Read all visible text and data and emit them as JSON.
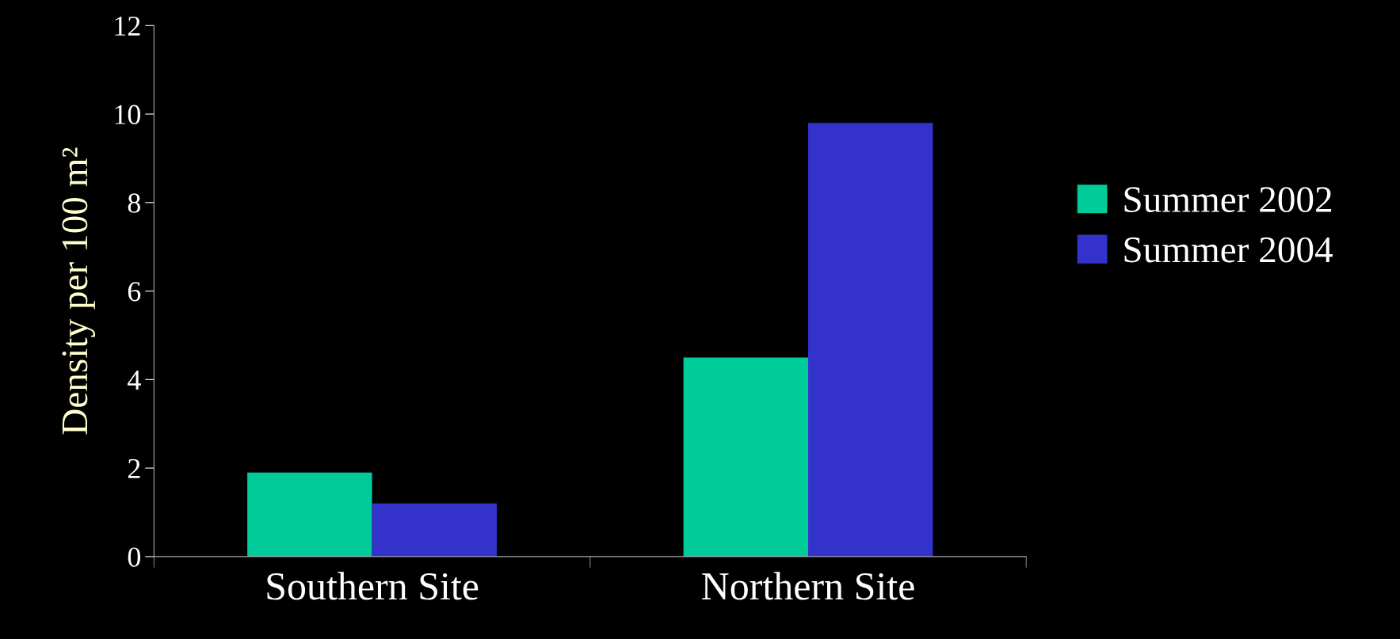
{
  "chart_data": {
    "type": "bar",
    "ylabel": "Density per 100 m²",
    "categories": [
      "Southern Site",
      "Northern Site"
    ],
    "series": [
      {
        "name": "Summer 2002",
        "color": "#00cc99",
        "values": [
          1.9,
          4.5
        ]
      },
      {
        "name": "Summer 2004",
        "color": "#3333cc",
        "values": [
          1.2,
          9.8
        ]
      }
    ],
    "ylim": [
      0,
      12
    ],
    "yticks": [
      0,
      2,
      4,
      6,
      8,
      10,
      12
    ],
    "grid": false,
    "legend": "right"
  }
}
